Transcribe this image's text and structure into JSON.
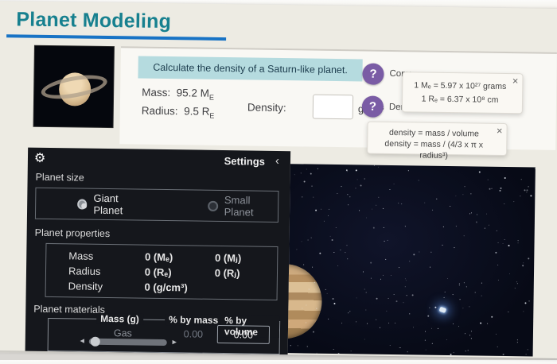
{
  "page": {
    "title": "Planet Modeling"
  },
  "worksheet": {
    "prompt": "Calculate the density of a Saturn-like planet.",
    "mass_label": "Mass:",
    "mass_value": "95.2 M",
    "mass_sub": "E",
    "radius_label": "Radius:",
    "radius_value": "9.5 R",
    "radius_sub": "E",
    "density_label": "Density:",
    "density_value": "",
    "density_unit": "g/cm³",
    "help_conversions_label": "Conv",
    "help_density_label": "Dens",
    "tooltip_conversions": {
      "line1": "1 Mₑ = 5.97 x 10²⁷ grams",
      "line2": "1 Rₑ = 6.37 x 10⁸ cm"
    },
    "tooltip_density": {
      "line1": "density = mass / volume",
      "line2": "density = mass / (4/3 x π x radius³)"
    }
  },
  "settings_panel": {
    "header": "Settings",
    "planet_size": {
      "label": "Planet size",
      "options": [
        {
          "label": "Giant Planet",
          "selected": true
        },
        {
          "label": "Small Planet",
          "selected": false
        }
      ]
    },
    "planet_properties": {
      "label": "Planet properties",
      "rows": [
        {
          "name": "Mass",
          "v1": "0 (Mₑ)",
          "v2": "0 (Mⱼ)"
        },
        {
          "name": "Radius",
          "v1": "0 (Rₑ)",
          "v2": "0 (Rⱼ)"
        },
        {
          "name": "Density",
          "v1": "0 (g/cm³)",
          "v2": ""
        }
      ]
    },
    "planet_materials": {
      "label": "Planet materials",
      "col_mass": "Mass (g)",
      "col_pct_mass": "% by mass",
      "col_pct_volume": "% by volume",
      "rows": [
        {
          "name": "Gas",
          "pct_mass": "0.00",
          "pct_volume": "0.00"
        }
      ]
    }
  },
  "icons": {
    "help": "?",
    "close": "×",
    "gear": "⚙",
    "collapse": "‹",
    "slider_left": "◄",
    "slider_right": "►"
  },
  "colors": {
    "title": "#17808f",
    "underline": "#1873c5",
    "banner_bg": "#b5dbdf",
    "help_purple": "#7a5ca5",
    "panel_bg": "#15171c",
    "starfield_bg": "#070a16"
  }
}
